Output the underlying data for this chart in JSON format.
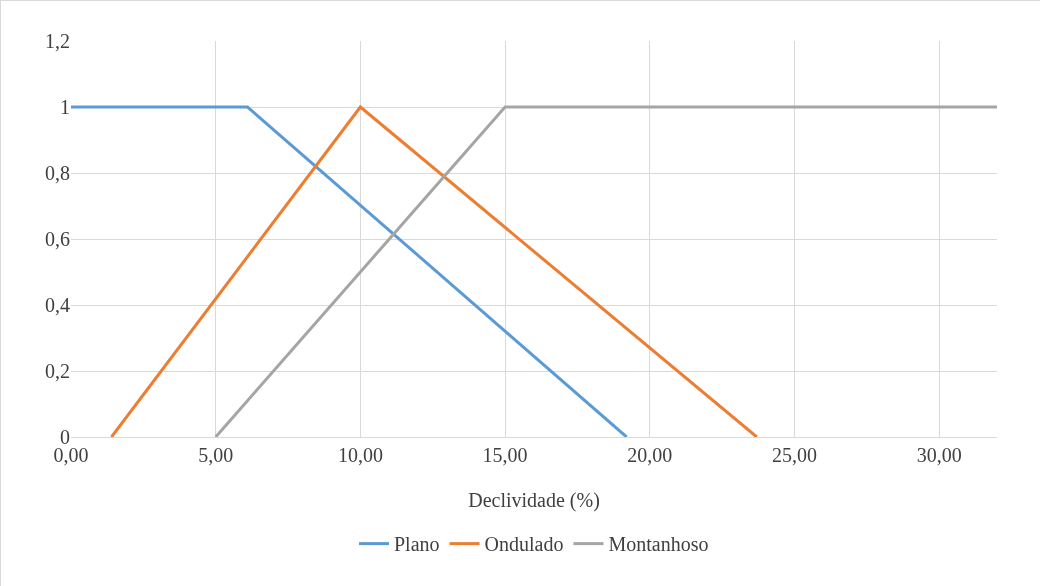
{
  "chart_data": {
    "type": "line",
    "xlabel": "Declividade (%)",
    "series": [
      {
        "name": "Plano",
        "color": "#5b9bd5",
        "x": [
          0,
          6.1,
          19.2
        ],
        "values": [
          1,
          1,
          0
        ]
      },
      {
        "name": "Ondulado",
        "color": "#ed7d31",
        "x": [
          1.4,
          10,
          23.7
        ],
        "values": [
          0,
          1,
          0
        ]
      },
      {
        "name": "Montanhoso",
        "color": "#a5a5a5",
        "x": [
          5,
          15,
          32
        ],
        "values": [
          0,
          1,
          1
        ]
      }
    ],
    "xlim": [
      0,
      32
    ],
    "xticks": [
      {
        "value": 0,
        "label": "0,00"
      },
      {
        "value": 5,
        "label": "5,00"
      },
      {
        "value": 10,
        "label": "10,00"
      },
      {
        "value": 15,
        "label": "15,00"
      },
      {
        "value": 20,
        "label": "20,00"
      },
      {
        "value": 25,
        "label": "25,00"
      },
      {
        "value": 30,
        "label": "30,00"
      }
    ],
    "ylim": [
      0,
      1.2
    ],
    "yticks": [
      0,
      {
        "value": 0.2,
        "label": "0,2"
      },
      {
        "value": 0.4,
        "label": "0,4"
      },
      {
        "value": 0.6,
        "label": "0,6"
      },
      {
        "value": 0.8,
        "label": "0,8"
      },
      1,
      {
        "value": 1.2,
        "label": "1,2"
      }
    ],
    "grid": true,
    "legend": "bottom",
    "marker": "none",
    "line_style": "solid"
  }
}
